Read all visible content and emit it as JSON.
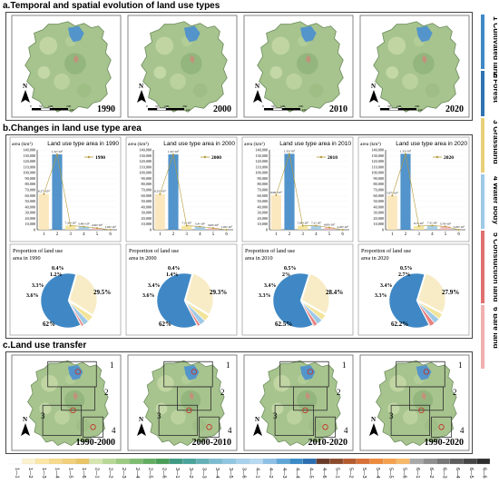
{
  "sections": {
    "a": "a.Temporal and spatial evolution of land use types",
    "b": "b.Changes in land use type area",
    "c": "c.Land use transfer"
  },
  "maps_a": {
    "years": [
      "1990",
      "2000",
      "2010",
      "2020"
    ],
    "north": "N",
    "scale_ticks": [
      "0",
      "50",
      "100",
      "200"
    ],
    "scale_unit": "km"
  },
  "maps_c": {
    "periods": [
      "1990-2000",
      "2000-2010",
      "2010-2020",
      "1990-2020"
    ],
    "north": "N",
    "zones": [
      "1",
      "2",
      "3",
      "4"
    ]
  },
  "legend": {
    "classes": [
      {
        "name": "1 Cultivated land",
        "color": "#f6e3a8"
      },
      {
        "name": "2 Forest",
        "color": "#3f88c5"
      },
      {
        "name": "3 Grassland",
        "color": "#e4c56a"
      },
      {
        "name": "4 Water body",
        "color": "#9ec9e6"
      },
      {
        "name": "5 Construction land",
        "color": "#e98080"
      },
      {
        "name": "6 Bare land",
        "color": "#f0b0b0"
      }
    ],
    "strip_labels": [
      "1 Cultivated land",
      "2 Forest",
      "3 Grassland",
      "4 Water body",
      "5 Constuction land",
      "6 Bare land"
    ]
  },
  "chart_data": [
    {
      "type": "bar",
      "title": "Land use type area in 1990",
      "ylabel": "area (km²)",
      "categories": [
        "1",
        "2",
        "3",
        "4",
        "5",
        "6"
      ],
      "values": [
        62700,
        132000,
        7240,
        5400,
        2900,
        10
      ],
      "value_labels": [
        "6.27×10⁴",
        "1.32×10⁵",
        "7.24×10³",
        "5.40×10³",
        "2.90×10³",
        "1.00×10¹"
      ],
      "series_name": "1990",
      "ylim": [
        0,
        140000
      ],
      "yticks": [
        "0",
        "10,000",
        "20,000",
        "30,000",
        "40,000",
        "50,000",
        "60,000",
        "70,000",
        "80,000",
        "90,000",
        "100,000",
        "110,000",
        "120,000",
        "130,000",
        "140,000"
      ]
    },
    {
      "type": "bar",
      "title": "Land use type area in 2000",
      "ylabel": "area (km²)",
      "categories": [
        "1",
        "2",
        "3",
        "4",
        "5",
        "6"
      ],
      "values": [
        62500,
        132000,
        7200,
        5400,
        3000,
        10
      ],
      "value_labels": [
        "6.25×10⁴",
        "1.32×10⁵",
        "7.2×10³",
        "5.4×10³",
        "3.00×10³",
        "1.00×10¹"
      ],
      "series_name": "2000",
      "ylim": [
        0,
        140000
      ],
      "yticks": [
        "0",
        "10,000",
        "20,000",
        "30,000",
        "40,000",
        "50,000",
        "60,000",
        "70,000",
        "80,000",
        "90,000",
        "100,000",
        "110,000",
        "120,000",
        "130,000",
        "140,000"
      ]
    },
    {
      "type": "bar",
      "title": "Land use type area in 2010",
      "ylabel": "area (km²)",
      "categories": [
        "1",
        "2",
        "3",
        "4",
        "5",
        "6"
      ],
      "values": [
        60600,
        133000,
        7060,
        7200,
        4000,
        20
      ],
      "value_labels": [
        "6.06×10⁴",
        "1.33×10⁵",
        "7.06×10³",
        "7.2×10³",
        "4.00×10³",
        "2.00×10¹"
      ],
      "series_name": "2010",
      "ylim": [
        0,
        140000
      ],
      "yticks": [
        "0",
        "10,000",
        "20,000",
        "30,000",
        "40,000",
        "50,000",
        "60,000",
        "70,000",
        "80,000",
        "90,000",
        "100,000",
        "110,000",
        "120,000",
        "130,000",
        "140,000"
      ]
    },
    {
      "type": "bar",
      "title": "Land use type area in 2020",
      "ylabel": "area (km²)",
      "categories": [
        "1",
        "2",
        "3",
        "4",
        "5",
        "6"
      ],
      "values": [
        59700,
        133000,
        6500,
        7300,
        5700,
        30
      ],
      "value_labels": [
        "5.97×10⁴",
        "1.33×10⁵",
        "6.5×10³",
        "7.3×10³",
        "5.70×10³",
        "3.00×10¹"
      ],
      "series_name": "2020",
      "ylim": [
        0,
        140000
      ],
      "yticks": [
        "0",
        "10,000",
        "20,000",
        "30,000",
        "40,000",
        "50,000",
        "60,000",
        "70,000",
        "80,000",
        "90,000",
        "100,000",
        "110,000",
        "120,000",
        "130,000",
        "140,000"
      ]
    },
    {
      "type": "pie",
      "title": "Proportion of land use area in 1990",
      "categories": [
        "Forest",
        "Cultivated land",
        "Grassland",
        "Water body",
        "Construction land",
        "Bare land"
      ],
      "values": [
        62,
        29.5,
        3.6,
        3.3,
        1.2,
        0.4
      ],
      "labels": [
        "62%",
        "29.5%",
        "3.6%",
        "3.3%",
        "1.2%",
        "0.4%"
      ]
    },
    {
      "type": "pie",
      "title": "Proportion of land use area in 2000",
      "categories": [
        "Forest",
        "Cultivated land",
        "Grassland",
        "Water body",
        "Construction land",
        "Bare land"
      ],
      "values": [
        62,
        29.3,
        3.6,
        3.4,
        1.4,
        0.4
      ],
      "labels": [
        "62%",
        "29.3%",
        "3.6%",
        "3.4%",
        "1.4%",
        "0.4%"
      ]
    },
    {
      "type": "pie",
      "title": "Proportion of land use area in 2010",
      "categories": [
        "Forest",
        "Cultivated land",
        "Grassland",
        "Water body",
        "Construction land",
        "Bare land"
      ],
      "values": [
        62.5,
        28.4,
        3.3,
        3.4,
        2,
        0.5
      ],
      "labels": [
        "62.5%",
        "28.4%",
        "3.3%",
        "3.4%",
        "2%",
        "0.5%"
      ]
    },
    {
      "type": "pie",
      "title": "Proportion of land use area in 2020",
      "categories": [
        "Forest",
        "Cultivated land",
        "Grassland",
        "Water body",
        "Construction land",
        "Bare land"
      ],
      "values": [
        62.2,
        27.9,
        3.3,
        3.4,
        2.7,
        0.5
      ],
      "labels": [
        "62.2%",
        "27.9%",
        "3.3%",
        "3.4%",
        "2.7%",
        "0.5%"
      ]
    }
  ],
  "transfer_ramp": {
    "labels": [
      "1—1",
      "1—2",
      "1—3",
      "1—4",
      "1—5",
      "1—6",
      "2—1",
      "2—2",
      "2—3",
      "2—4",
      "2—5",
      "2—6",
      "3—1",
      "3—2",
      "3—3",
      "3—4",
      "3—5",
      "3—6",
      "4—1",
      "4—2",
      "4—3",
      "4—4",
      "4—5",
      "4—6",
      "5—1",
      "5—2",
      "5—3",
      "5—4",
      "5—5",
      "5—6",
      "6—1",
      "6—2",
      "6—3",
      "6—4",
      "6—5",
      "6—6"
    ],
    "colors": [
      "#ffffff",
      "#fdf2cf",
      "#fbe6a6",
      "#f6d98a",
      "#f2cf7a",
      "#e8c465",
      "#d7e6b0",
      "#b9d896",
      "#9bca80",
      "#7fbc70",
      "#63ad62",
      "#4a9e58",
      "#3f9a83",
      "#4aa39b",
      "#63b0b6",
      "#7dbcd0",
      "#8fc6e0",
      "#a7d1ec",
      "#b7daf2",
      "#8ec0e6",
      "#5fa6d6",
      "#3a8bc7",
      "#2b6fb0",
      "#6b3b2a",
      "#8a4a2c",
      "#b45b2f",
      "#d97037",
      "#ee8a3c",
      "#f5a04e",
      "#f7b867",
      "#a8a8a8",
      "#8e8e8e",
      "#767676",
      "#5e5e5e",
      "#464646",
      "#2e2e2e"
    ]
  }
}
